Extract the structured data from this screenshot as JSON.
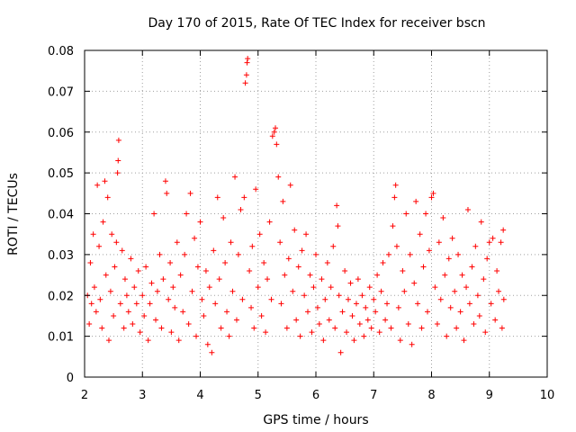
{
  "chart_data": {
    "type": "scatter",
    "title": "Day 170 of 2015, Rate Of TEC Index for receiver bscn",
    "xlabel": "GPS time / hours",
    "ylabel": "ROTI / TECUs",
    "xlim": [
      2,
      10
    ],
    "ylim": [
      0,
      0.08
    ],
    "xticks": [
      2,
      3,
      4,
      5,
      6,
      7,
      8,
      9,
      10
    ],
    "xtick_labels": [
      "2",
      "3",
      "4",
      "5",
      "6",
      "7",
      "8",
      "9",
      "10"
    ],
    "yticks": [
      0,
      0.01,
      0.02,
      0.03,
      0.04,
      0.05,
      0.06,
      0.07,
      0.08
    ],
    "ytick_labels": [
      "0",
      "0.01",
      "0.02",
      "0.03",
      "0.04",
      "0.05",
      "0.06",
      "0.07",
      "0.08"
    ],
    "grid": true,
    "marker": "+",
    "color": "#ff0000",
    "series": [
      {
        "name": "ROTI",
        "points": [
          [
            2.05,
            0.02
          ],
          [
            2.08,
            0.013
          ],
          [
            2.1,
            0.028
          ],
          [
            2.12,
            0.018
          ],
          [
            2.15,
            0.035
          ],
          [
            2.17,
            0.022
          ],
          [
            2.2,
            0.016
          ],
          [
            2.22,
            0.047
          ],
          [
            2.25,
            0.032
          ],
          [
            2.27,
            0.019
          ],
          [
            2.3,
            0.012
          ],
          [
            2.32,
            0.038
          ],
          [
            2.35,
            0.048
          ],
          [
            2.37,
            0.025
          ],
          [
            2.4,
            0.044
          ],
          [
            2.42,
            0.009
          ],
          [
            2.45,
            0.021
          ],
          [
            2.47,
            0.035
          ],
          [
            2.5,
            0.015
          ],
          [
            2.52,
            0.027
          ],
          [
            2.55,
            0.033
          ],
          [
            2.57,
            0.05
          ],
          [
            2.58,
            0.053
          ],
          [
            2.59,
            0.058
          ],
          [
            2.62,
            0.018
          ],
          [
            2.65,
            0.031
          ],
          [
            2.68,
            0.012
          ],
          [
            2.7,
            0.024
          ],
          [
            2.73,
            0.02
          ],
          [
            2.76,
            0.016
          ],
          [
            2.8,
            0.029
          ],
          [
            2.83,
            0.013
          ],
          [
            2.86,
            0.022
          ],
          [
            2.9,
            0.018
          ],
          [
            2.93,
            0.026
          ],
          [
            2.96,
            0.011
          ],
          [
            3.0,
            0.02
          ],
          [
            3.03,
            0.015
          ],
          [
            3.06,
            0.027
          ],
          [
            3.1,
            0.009
          ],
          [
            3.13,
            0.018
          ],
          [
            3.16,
            0.023
          ],
          [
            3.2,
            0.04
          ],
          [
            3.23,
            0.014
          ],
          [
            3.26,
            0.021
          ],
          [
            3.3,
            0.03
          ],
          [
            3.33,
            0.012
          ],
          [
            3.36,
            0.024
          ],
          [
            3.4,
            0.048
          ],
          [
            3.42,
            0.045
          ],
          [
            3.45,
            0.019
          ],
          [
            3.48,
            0.028
          ],
          [
            3.5,
            0.011
          ],
          [
            3.53,
            0.022
          ],
          [
            3.56,
            0.017
          ],
          [
            3.6,
            0.033
          ],
          [
            3.63,
            0.009
          ],
          [
            3.66,
            0.025
          ],
          [
            3.7,
            0.016
          ],
          [
            3.73,
            0.03
          ],
          [
            3.76,
            0.04
          ],
          [
            3.8,
            0.013
          ],
          [
            3.83,
            0.045
          ],
          [
            3.86,
            0.021
          ],
          [
            3.9,
            0.034
          ],
          [
            3.93,
            0.01
          ],
          [
            3.96,
            0.027
          ],
          [
            4.0,
            0.038
          ],
          [
            4.03,
            0.019
          ],
          [
            4.06,
            0.015
          ],
          [
            4.1,
            0.026
          ],
          [
            4.13,
            0.008
          ],
          [
            4.16,
            0.022
          ],
          [
            4.2,
            0.006
          ],
          [
            4.23,
            0.031
          ],
          [
            4.26,
            0.018
          ],
          [
            4.3,
            0.044
          ],
          [
            4.33,
            0.024
          ],
          [
            4.36,
            0.012
          ],
          [
            4.4,
            0.039
          ],
          [
            4.43,
            0.028
          ],
          [
            4.46,
            0.016
          ],
          [
            4.5,
            0.01
          ],
          [
            4.53,
            0.033
          ],
          [
            4.56,
            0.021
          ],
          [
            4.6,
            0.049
          ],
          [
            4.63,
            0.014
          ],
          [
            4.66,
            0.03
          ],
          [
            4.7,
            0.041
          ],
          [
            4.73,
            0.019
          ],
          [
            4.76,
            0.044
          ],
          [
            4.78,
            0.072
          ],
          [
            4.8,
            0.074
          ],
          [
            4.81,
            0.077
          ],
          [
            4.82,
            0.078
          ],
          [
            4.85,
            0.026
          ],
          [
            4.88,
            0.017
          ],
          [
            4.9,
            0.032
          ],
          [
            4.93,
            0.012
          ],
          [
            4.96,
            0.046
          ],
          [
            5.0,
            0.022
          ],
          [
            5.03,
            0.035
          ],
          [
            5.06,
            0.015
          ],
          [
            5.1,
            0.028
          ],
          [
            5.13,
            0.011
          ],
          [
            5.16,
            0.024
          ],
          [
            5.2,
            0.038
          ],
          [
            5.23,
            0.019
          ],
          [
            5.25,
            0.059
          ],
          [
            5.28,
            0.06
          ],
          [
            5.3,
            0.061
          ],
          [
            5.32,
            0.057
          ],
          [
            5.35,
            0.049
          ],
          [
            5.38,
            0.033
          ],
          [
            5.4,
            0.018
          ],
          [
            5.43,
            0.043
          ],
          [
            5.46,
            0.025
          ],
          [
            5.5,
            0.012
          ],
          [
            5.53,
            0.029
          ],
          [
            5.56,
            0.047
          ],
          [
            5.6,
            0.021
          ],
          [
            5.63,
            0.036
          ],
          [
            5.66,
            0.014
          ],
          [
            5.7,
            0.027
          ],
          [
            5.73,
            0.01
          ],
          [
            5.76,
            0.031
          ],
          [
            5.8,
            0.02
          ],
          [
            5.83,
            0.035
          ],
          [
            5.86,
            0.016
          ],
          [
            5.9,
            0.025
          ],
          [
            5.93,
            0.011
          ],
          [
            5.96,
            0.022
          ],
          [
            6.0,
            0.03
          ],
          [
            6.03,
            0.017
          ],
          [
            6.06,
            0.013
          ],
          [
            6.1,
            0.024
          ],
          [
            6.13,
            0.009
          ],
          [
            6.16,
            0.019
          ],
          [
            6.2,
            0.028
          ],
          [
            6.23,
            0.014
          ],
          [
            6.26,
            0.022
          ],
          [
            6.3,
            0.032
          ],
          [
            6.33,
            0.012
          ],
          [
            6.36,
            0.042
          ],
          [
            6.38,
            0.037
          ],
          [
            6.4,
            0.02
          ],
          [
            6.43,
            0.006
          ],
          [
            6.46,
            0.016
          ],
          [
            6.5,
            0.026
          ],
          [
            6.53,
            0.011
          ],
          [
            6.56,
            0.019
          ],
          [
            6.6,
            0.023
          ],
          [
            6.63,
            0.015
          ],
          [
            6.66,
            0.009
          ],
          [
            6.7,
            0.018
          ],
          [
            6.73,
            0.024
          ],
          [
            6.76,
            0.013
          ],
          [
            6.8,
            0.02
          ],
          [
            6.83,
            0.01
          ],
          [
            6.86,
            0.017
          ],
          [
            6.9,
            0.014
          ],
          [
            6.93,
            0.022
          ],
          [
            6.96,
            0.012
          ],
          [
            7.0,
            0.019
          ],
          [
            7.03,
            0.016
          ],
          [
            7.06,
            0.025
          ],
          [
            7.1,
            0.011
          ],
          [
            7.13,
            0.021
          ],
          [
            7.16,
            0.028
          ],
          [
            7.2,
            0.014
          ],
          [
            7.23,
            0.018
          ],
          [
            7.26,
            0.03
          ],
          [
            7.3,
            0.012
          ],
          [
            7.33,
            0.037
          ],
          [
            7.36,
            0.044
          ],
          [
            7.38,
            0.047
          ],
          [
            7.4,
            0.032
          ],
          [
            7.43,
            0.017
          ],
          [
            7.46,
            0.009
          ],
          [
            7.5,
            0.026
          ],
          [
            7.53,
            0.021
          ],
          [
            7.56,
            0.04
          ],
          [
            7.6,
            0.013
          ],
          [
            7.63,
            0.03
          ],
          [
            7.66,
            0.008
          ],
          [
            7.7,
            0.023
          ],
          [
            7.73,
            0.043
          ],
          [
            7.76,
            0.018
          ],
          [
            7.8,
            0.035
          ],
          [
            7.83,
            0.012
          ],
          [
            7.86,
            0.027
          ],
          [
            7.9,
            0.04
          ],
          [
            7.93,
            0.016
          ],
          [
            7.96,
            0.031
          ],
          [
            8.0,
            0.044
          ],
          [
            8.03,
            0.045
          ],
          [
            8.06,
            0.022
          ],
          [
            8.1,
            0.013
          ],
          [
            8.13,
            0.033
          ],
          [
            8.16,
            0.019
          ],
          [
            8.2,
            0.039
          ],
          [
            8.23,
            0.025
          ],
          [
            8.26,
            0.01
          ],
          [
            8.3,
            0.029
          ],
          [
            8.33,
            0.017
          ],
          [
            8.36,
            0.034
          ],
          [
            8.4,
            0.021
          ],
          [
            8.43,
            0.012
          ],
          [
            8.46,
            0.03
          ],
          [
            8.5,
            0.016
          ],
          [
            8.53,
            0.025
          ],
          [
            8.56,
            0.009
          ],
          [
            8.6,
            0.022
          ],
          [
            8.63,
            0.041
          ],
          [
            8.66,
            0.018
          ],
          [
            8.7,
            0.027
          ],
          [
            8.73,
            0.013
          ],
          [
            8.76,
            0.032
          ],
          [
            8.8,
            0.02
          ],
          [
            8.83,
            0.015
          ],
          [
            8.86,
            0.038
          ],
          [
            8.9,
            0.024
          ],
          [
            8.93,
            0.011
          ],
          [
            8.96,
            0.029
          ],
          [
            9.0,
            0.033
          ],
          [
            9.03,
            0.018
          ],
          [
            9.06,
            0.034
          ],
          [
            9.1,
            0.014
          ],
          [
            9.13,
            0.026
          ],
          [
            9.16,
            0.021
          ],
          [
            9.2,
            0.033
          ],
          [
            9.22,
            0.012
          ],
          [
            9.24,
            0.036
          ],
          [
            9.25,
            0.019
          ]
        ]
      }
    ]
  }
}
